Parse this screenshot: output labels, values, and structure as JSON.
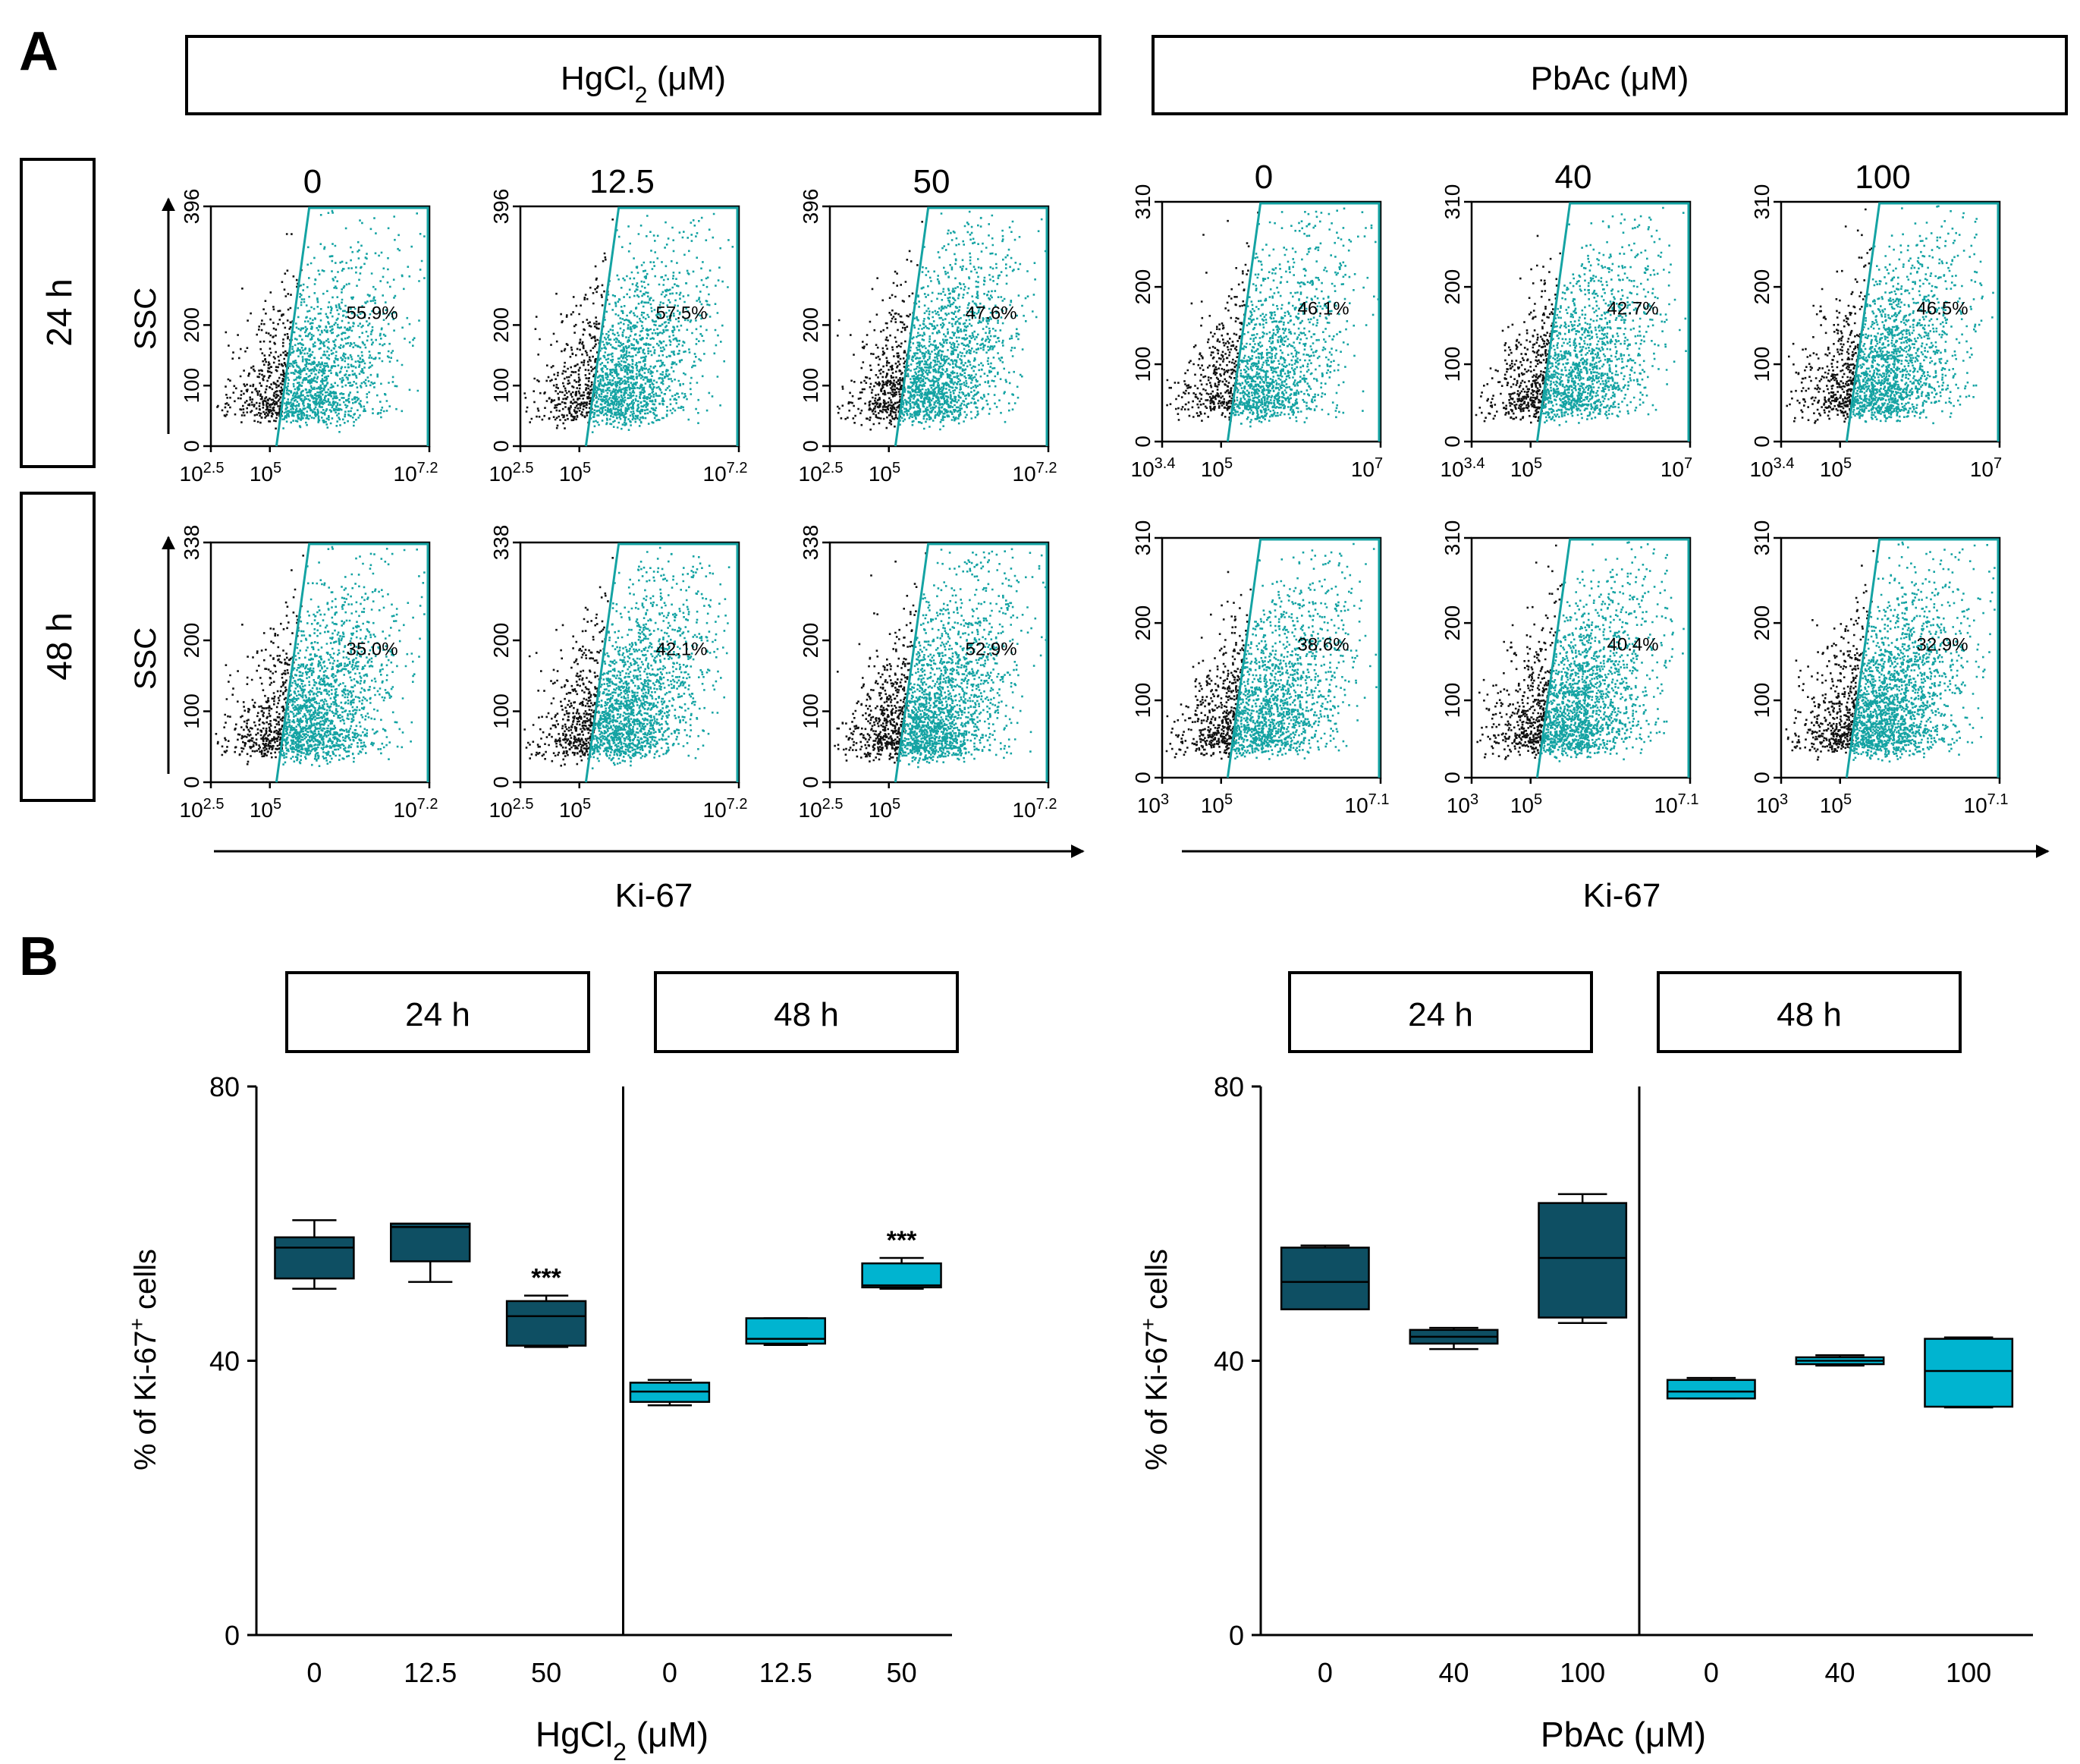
{
  "panel_a": {
    "label": "A",
    "ylabel": "SSC",
    "xlabel": "Ki-67",
    "hg_header": {
      "main": "HgCl",
      "sub": "2",
      "unit": " (μM)"
    },
    "pb_header": "PbAc (μM)",
    "row_labels": [
      "24 h",
      "48 h"
    ],
    "hg_concs": [
      "0",
      "12.5",
      "50"
    ],
    "pb_concs": [
      "0",
      "40",
      "100"
    ],
    "rows": [
      {
        "time": "24 h",
        "hg": {
          "y_ticks": [
            "0",
            "100",
            "200",
            "396"
          ],
          "x_ticks": [
            {
              "base": "10",
              "exp": "2.5"
            },
            {
              "base": "10",
              "exp": "5"
            },
            {
              "base": "10",
              "exp": "7.2"
            }
          ],
          "percents": [
            "55.9%",
            "57.5%",
            "47.6%"
          ]
        },
        "pb": {
          "y_ticks": [
            "0",
            "100",
            "200",
            "310"
          ],
          "x_ticks": [
            {
              "base": "10",
              "exp": "3.4"
            },
            {
              "base": "10",
              "exp": "5"
            },
            {
              "base": "10",
              "exp": "7"
            }
          ],
          "percents": [
            "46.1%",
            "42.7%",
            "46.5%"
          ]
        }
      },
      {
        "time": "48 h",
        "hg": {
          "y_ticks": [
            "0",
            "100",
            "200",
            "338"
          ],
          "x_ticks": [
            {
              "base": "10",
              "exp": "2.5"
            },
            {
              "base": "10",
              "exp": "5"
            },
            {
              "base": "10",
              "exp": "7.2"
            }
          ],
          "percents": [
            "35.0%",
            "42.1%",
            "52.9%"
          ]
        },
        "pb": {
          "y_ticks": [
            "0",
            "100",
            "200",
            "310"
          ],
          "x_ticks": [
            {
              "base": "10",
              "exp": "3"
            },
            {
              "base": "10",
              "exp": "5"
            },
            {
              "base": "10",
              "exp": "7.1"
            }
          ],
          "percents": [
            "38.6%",
            "40.4%",
            "32.9%"
          ]
        }
      }
    ]
  },
  "panel_b": {
    "label": "B",
    "ylabel": {
      "pre": "% of Ki-67",
      "sup": "+",
      "post": " cells"
    },
    "time_labels": [
      "24 h",
      "48 h"
    ],
    "hg_xlabel": {
      "main": "HgCl",
      "sub": "2",
      "unit": " (μM)"
    },
    "pb_xlabel": "PbAc (μM)"
  },
  "colors": {
    "dark_teal": "#0e4f63",
    "light_cyan": "#00b4d0",
    "gate": "#14a3a3",
    "dot_black": "#111111"
  },
  "chart_data": [
    {
      "type": "box",
      "title": "HgCl2 (μM)",
      "ylabel": "% of Ki-67+ cells",
      "ylim": [
        0,
        80
      ],
      "yticks": [
        0,
        40,
        80
      ],
      "groups": [
        {
          "time": "24 h",
          "categories": [
            "0",
            "12.5",
            "50"
          ],
          "boxes": [
            {
              "min": 50.5,
              "q1": 52,
              "median": 56.5,
              "q3": 58,
              "max": 60.5,
              "sig": ""
            },
            {
              "min": 51.5,
              "q1": 54.5,
              "median": 59.5,
              "q3": 60,
              "max": 60,
              "sig": ""
            },
            {
              "min": 42,
              "q1": 42.2,
              "median": 46.5,
              "q3": 48.7,
              "max": 49.5,
              "sig": "***"
            }
          ]
        },
        {
          "time": "48 h",
          "categories": [
            "0",
            "12.5",
            "50"
          ],
          "boxes": [
            {
              "min": 33.5,
              "q1": 34,
              "median": 35.5,
              "q3": 36.8,
              "max": 37.2,
              "sig": ""
            },
            {
              "min": 42.3,
              "q1": 42.5,
              "median": 43.2,
              "q3": 46.2,
              "max": 46.2,
              "sig": ""
            },
            {
              "min": 50.5,
              "q1": 50.7,
              "median": 51,
              "q3": 54.2,
              "max": 55,
              "sig": "***"
            }
          ]
        }
      ]
    },
    {
      "type": "box",
      "title": "PbAc (μM)",
      "ylabel": "% of Ki-67+ cells",
      "ylim": [
        0,
        80
      ],
      "yticks": [
        0,
        40,
        80
      ],
      "groups": [
        {
          "time": "24 h",
          "categories": [
            "0",
            "40",
            "100"
          ],
          "boxes": [
            {
              "min": 47.5,
              "q1": 47.5,
              "median": 51.5,
              "q3": 56.5,
              "max": 56.8,
              "sig": ""
            },
            {
              "min": 41.7,
              "q1": 42.5,
              "median": 43.5,
              "q3": 44.5,
              "max": 44.8,
              "sig": ""
            },
            {
              "min": 45.5,
              "q1": 46.3,
              "median": 55,
              "q3": 63,
              "max": 64.3,
              "sig": ""
            }
          ]
        },
        {
          "time": "48 h",
          "categories": [
            "0",
            "40",
            "100"
          ],
          "boxes": [
            {
              "min": 34.5,
              "q1": 34.5,
              "median": 35.5,
              "q3": 37.2,
              "max": 37.5,
              "sig": ""
            },
            {
              "min": 39.3,
              "q1": 39.5,
              "median": 40,
              "q3": 40.5,
              "max": 40.8,
              "sig": ""
            },
            {
              "min": 33.2,
              "q1": 33.3,
              "median": 38.5,
              "q3": 43.2,
              "max": 43.4,
              "sig": ""
            }
          ]
        }
      ]
    }
  ]
}
